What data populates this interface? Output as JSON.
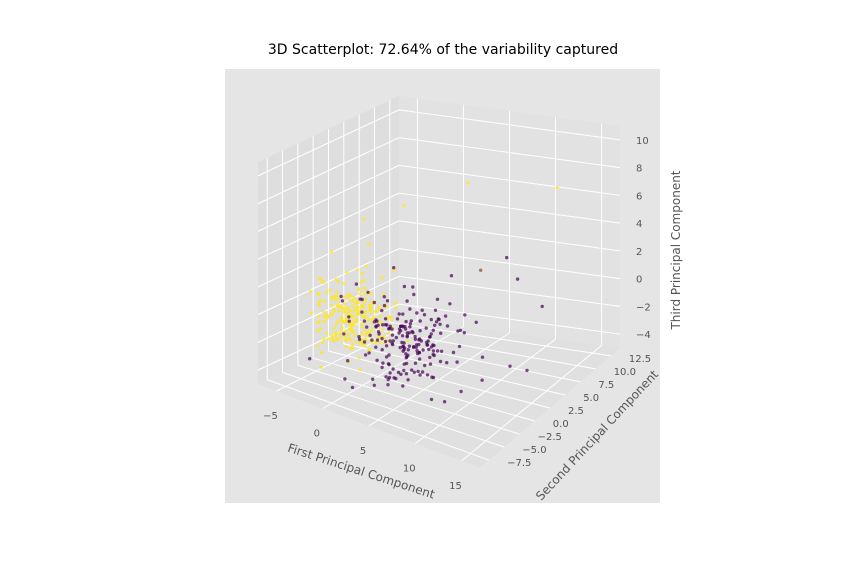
{
  "chart_data": {
    "type": "scatter",
    "title": "3D Scatterplot: 72.64% of the variability captured",
    "xlabel": "First Principal Component",
    "ylabel": "Second Principal Component",
    "zlabel": "Third Principal Component",
    "x_ticks": [
      "−5",
      "0",
      "5",
      "10",
      "15"
    ],
    "y_ticks": [
      "−7.5",
      "−5.0",
      "−2.5",
      "0.0",
      "2.5",
      "5.0",
      "7.5",
      "10.0",
      "12.5"
    ],
    "z_ticks": [
      "−4",
      "−2",
      "0",
      "2",
      "4",
      "6",
      "8",
      "10"
    ],
    "xlim": [
      -7,
      17
    ],
    "ylim": [
      -9,
      14
    ],
    "zlim": [
      -5,
      11
    ],
    "grid": true,
    "colors": {
      "class_a": "#fde725",
      "class_b": "#440154",
      "class_c": "#8c4a2b",
      "pane": "#e5e5e5",
      "grid": "#ffffff"
    },
    "series": [
      {
        "color_key": "class_a",
        "cluster": {
          "center": [
            -4,
            2,
            -2
          ],
          "spread": [
            2.0,
            1.6,
            1.3
          ],
          "count": 230
        },
        "points": [
          [
            -3.5,
            3.0,
            5.0
          ],
          [
            -2.0,
            1.5,
            3.8
          ],
          [
            0.5,
            3.5,
            6.5
          ],
          [
            13.5,
            9.0,
            8.0
          ],
          [
            4.5,
            8.0,
            7.5
          ],
          [
            -6.0,
            1.5,
            2.5
          ]
        ]
      },
      {
        "color_key": "class_b",
        "cluster": {
          "center": [
            4,
            -2,
            -1
          ],
          "spread": [
            2.8,
            2.2,
            1.5
          ],
          "count": 200
        },
        "points": [
          [
            12.5,
            4.0,
            3.0
          ],
          [
            14.5,
            5.0,
            1.0
          ],
          [
            12.0,
            -1.0,
            -1.0
          ],
          [
            15.5,
            1.0,
            -2.0
          ],
          [
            10.0,
            6.0,
            3.5
          ],
          [
            6.0,
            3.0,
            2.5
          ],
          [
            11.0,
            -3.0,
            -3.0
          ],
          [
            13.0,
            2.0,
            -2.5
          ]
        ]
      },
      {
        "color_key": "class_c",
        "points": [
          [
            8.5,
            4.0,
            3.0
          ]
        ]
      }
    ]
  }
}
